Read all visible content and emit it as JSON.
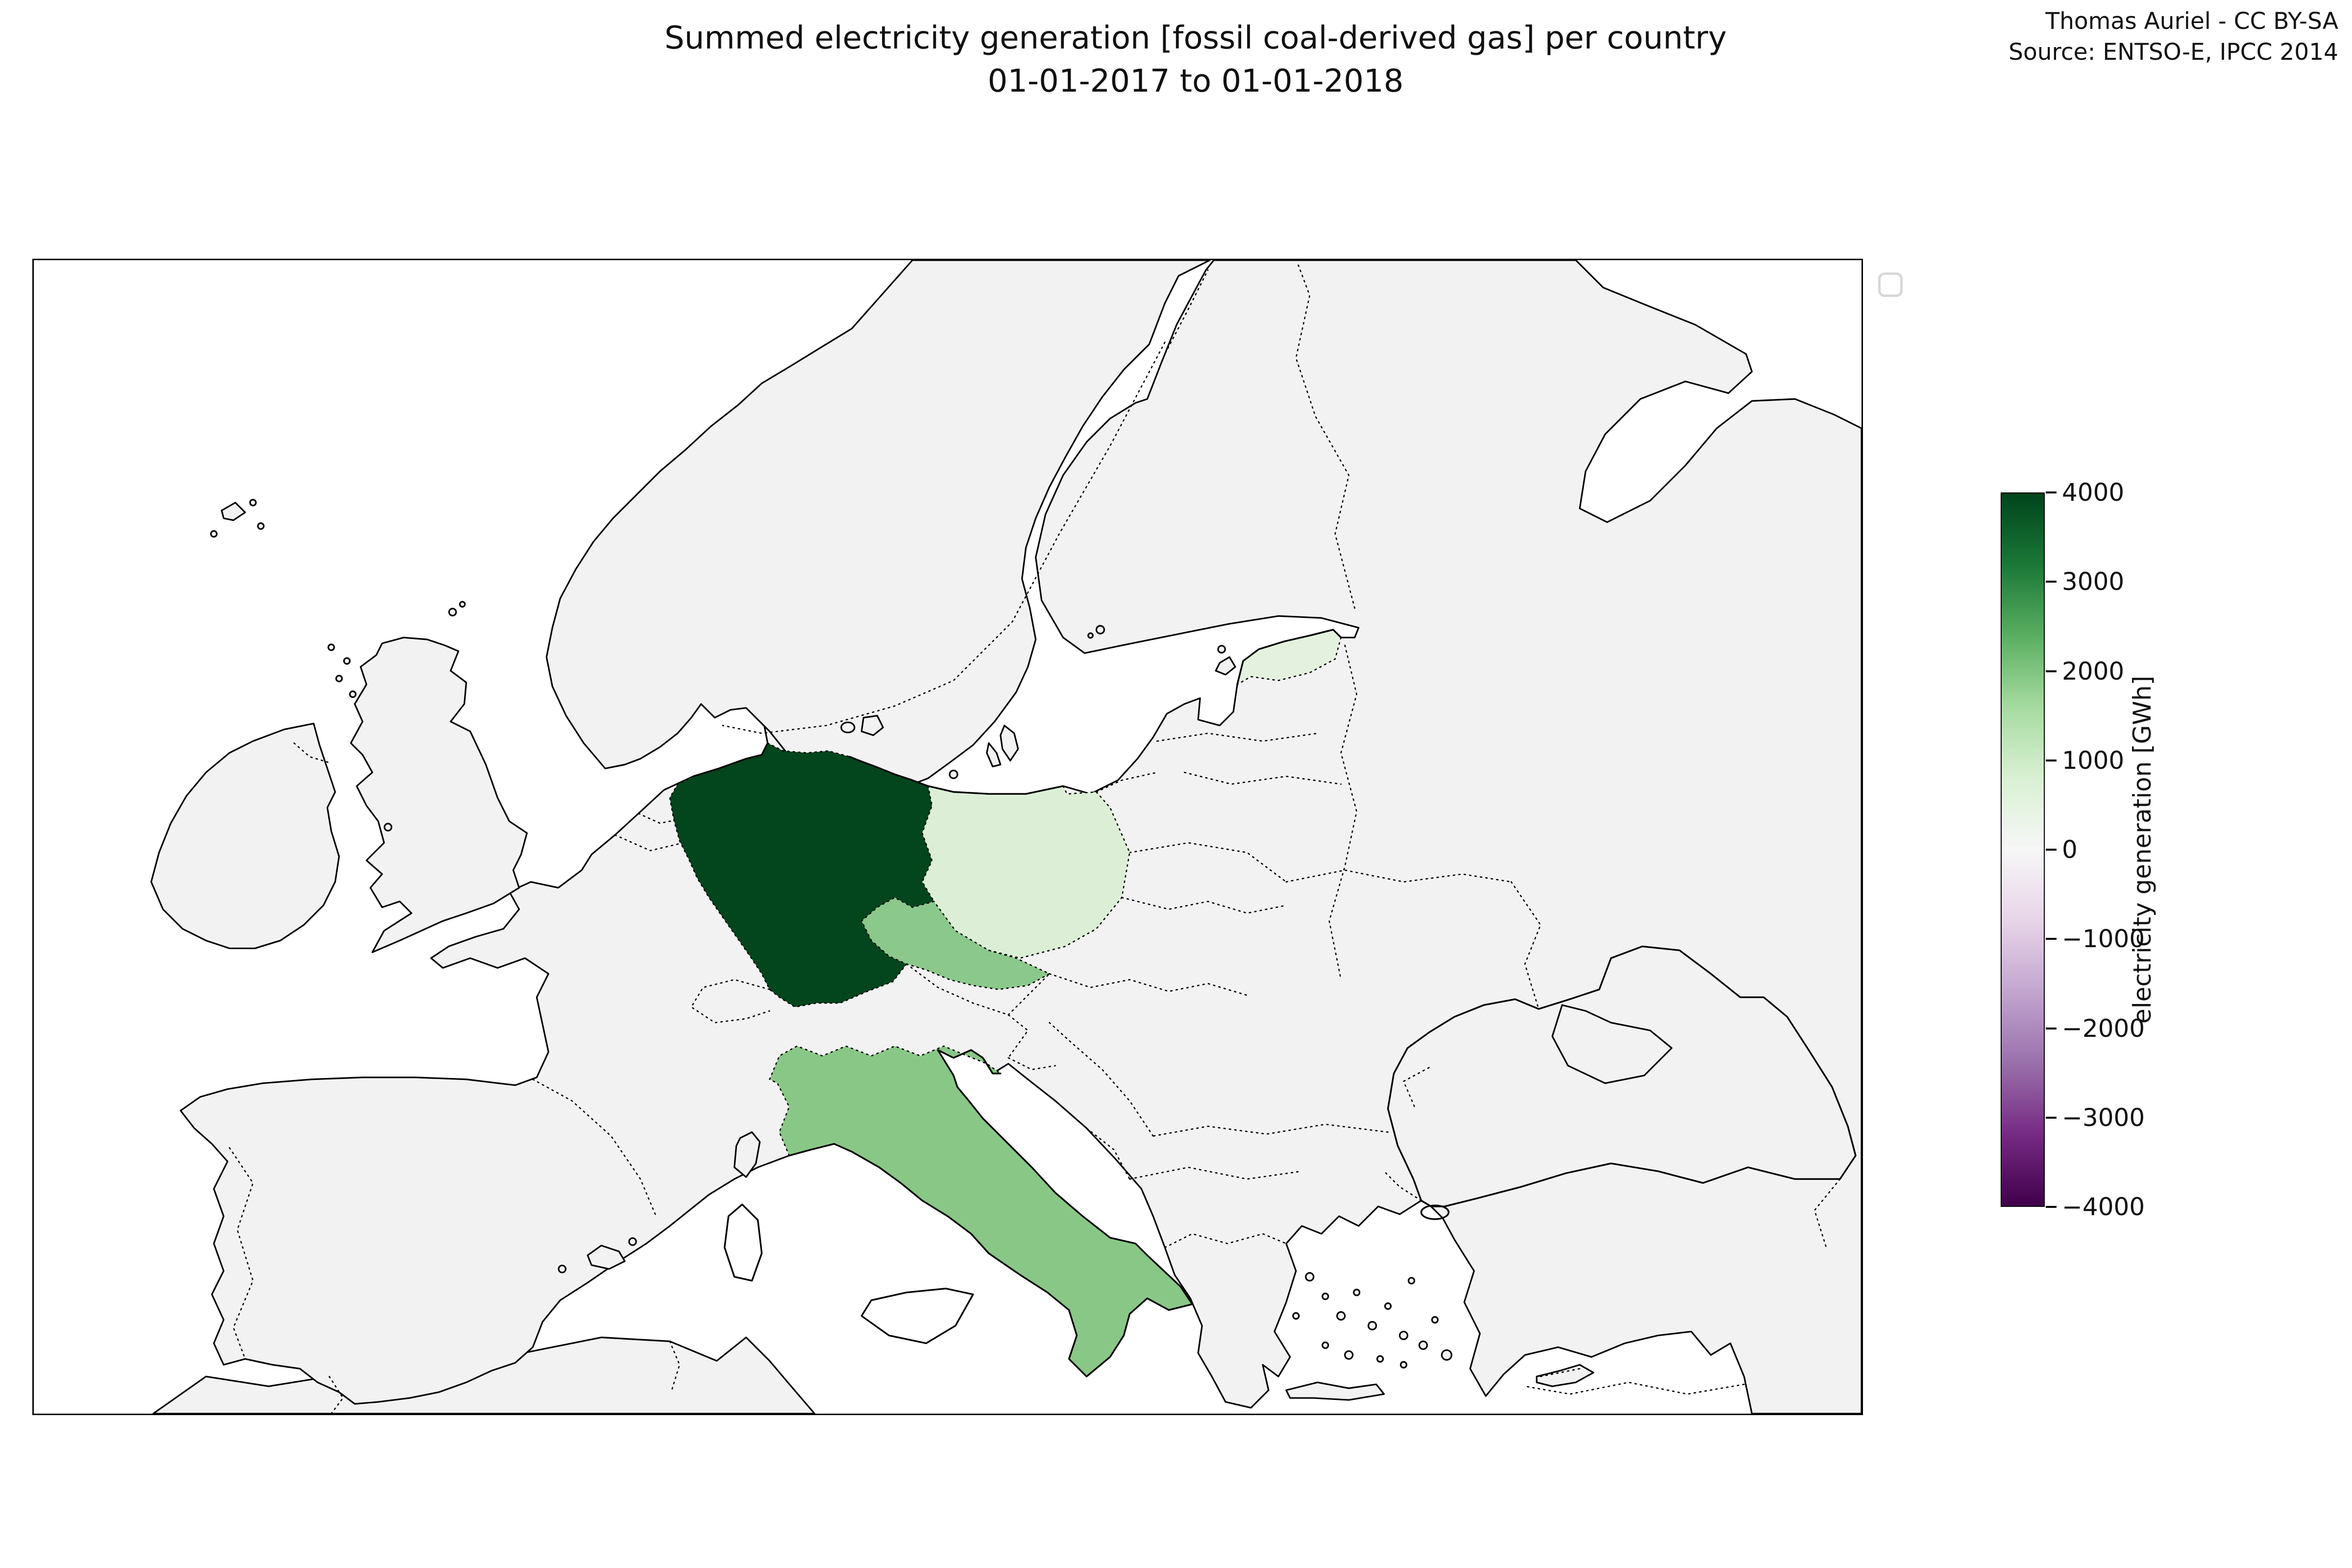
{
  "header": {
    "title_line1": "Summed electricity generation [fossil coal-derived gas] per country",
    "title_line2": "01-01-2017 to 01-01-2018",
    "attribution_line1": "Thomas Auriel - CC BY-SA",
    "attribution_line2": "Source: ENTSO-E, IPCC 2014"
  },
  "colorbar": {
    "label": "electricity generation [GWh]",
    "ticks": [
      "4000",
      "3000",
      "2000",
      "1000",
      "0",
      "−1000",
      "−2000",
      "−3000",
      "−4000"
    ],
    "max": 4000,
    "min": -4000,
    "stops": [
      "#00441b",
      "#1b7837",
      "#5aae61",
      "#a6dba0",
      "#d9f0d3",
      "#f7f7f7",
      "#e7d4e8",
      "#c2a5cf",
      "#9970ab",
      "#762a83",
      "#40004b"
    ]
  },
  "colors": {
    "sea": "#ffffff",
    "no_data_land": "#f2f2f2",
    "coastline": "#000000",
    "germany": "#03451c",
    "czechia": "#8bc88b",
    "italy": "#89c787",
    "poland": "#dcefd6",
    "estonia": "#e4f1df"
  },
  "chart_data": {
    "type": "choropleth",
    "title": "Summed electricity generation [fossil coal-derived gas] per country",
    "subtitle": "01-01-2017 to 01-01-2018",
    "value_label": "electricity generation [GWh]",
    "colormap": "PRGn (purple-white-green), green = positive",
    "value_range": [
      -4000,
      4000
    ],
    "colorbar_ticks": [
      4000,
      3000,
      2000,
      1000,
      0,
      -1000,
      -2000,
      -3000,
      -4000
    ],
    "series": [
      {
        "country": "Germany",
        "value_gwh_est": 3900
      },
      {
        "country": "Italy",
        "value_gwh_est": 1950
      },
      {
        "country": "Czech Republic",
        "value_gwh_est": 1800
      },
      {
        "country": "Poland",
        "value_gwh_est": 800
      },
      {
        "country": "Estonia",
        "value_gwh_est": 700
      }
    ],
    "no_data": "All other countries are shown in light gray (no data)"
  }
}
